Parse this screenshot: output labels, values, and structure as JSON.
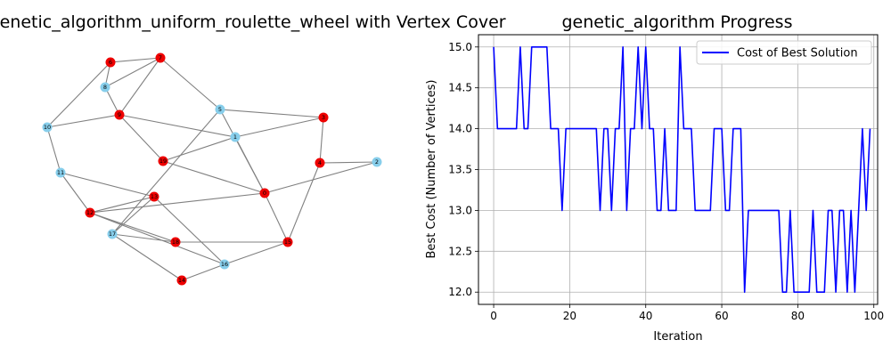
{
  "graph_panel": {
    "title": "graph_genetic_algorithm_uniform_roulette_wheel with Vertex Cover",
    "node_color_selected": "#ee0000",
    "node_color_unselected": "#87ceeb",
    "edge_color": "#808080",
    "nodes": [
      {
        "id": "0",
        "selected": true
      },
      {
        "id": "1",
        "selected": false
      },
      {
        "id": "2",
        "selected": false
      },
      {
        "id": "3",
        "selected": true
      },
      {
        "id": "4",
        "selected": true
      },
      {
        "id": "5",
        "selected": false
      },
      {
        "id": "6",
        "selected": true
      },
      {
        "id": "7",
        "selected": true
      },
      {
        "id": "8",
        "selected": false
      },
      {
        "id": "9",
        "selected": true
      },
      {
        "id": "10",
        "selected": false
      },
      {
        "id": "11",
        "selected": false
      },
      {
        "id": "12",
        "selected": true
      },
      {
        "id": "13",
        "selected": true
      },
      {
        "id": "14",
        "selected": true
      },
      {
        "id": "15",
        "selected": true
      },
      {
        "id": "16",
        "selected": false
      },
      {
        "id": "17",
        "selected": false
      },
      {
        "id": "18",
        "selected": true
      },
      {
        "id": "19",
        "selected": true
      }
    ],
    "edges": [
      [
        "6",
        "7"
      ],
      [
        "6",
        "8"
      ],
      [
        "6",
        "10"
      ],
      [
        "7",
        "8"
      ],
      [
        "7",
        "9"
      ],
      [
        "7",
        "5"
      ],
      [
        "8",
        "9"
      ],
      [
        "9",
        "10"
      ],
      [
        "9",
        "1"
      ],
      [
        "9",
        "19"
      ],
      [
        "5",
        "3"
      ],
      [
        "5",
        "0"
      ],
      [
        "5",
        "17"
      ],
      [
        "3",
        "1"
      ],
      [
        "3",
        "4"
      ],
      [
        "1",
        "19"
      ],
      [
        "1",
        "0"
      ],
      [
        "4",
        "2"
      ],
      [
        "4",
        "15"
      ],
      [
        "2",
        "0"
      ],
      [
        "10",
        "11"
      ],
      [
        "11",
        "13"
      ],
      [
        "11",
        "12"
      ],
      [
        "19",
        "0"
      ],
      [
        "0",
        "12"
      ],
      [
        "0",
        "15"
      ],
      [
        "13",
        "17"
      ],
      [
        "13",
        "16"
      ],
      [
        "13",
        "12"
      ],
      [
        "12",
        "18"
      ],
      [
        "12",
        "16"
      ],
      [
        "17",
        "18"
      ],
      [
        "17",
        "14"
      ],
      [
        "18",
        "15"
      ],
      [
        "15",
        "16"
      ],
      [
        "16",
        "14"
      ]
    ]
  },
  "chart_data": {
    "type": "line",
    "title": "genetic_algorithm Progress",
    "xlabel": "Iteration",
    "ylabel": "Best Cost (Number of Vertices)",
    "xlim": [
      -4,
      101
    ],
    "ylim": [
      11.85,
      15.15
    ],
    "xticks": [
      0,
      20,
      40,
      60,
      80,
      100
    ],
    "yticks": [
      12.0,
      12.5,
      13.0,
      13.5,
      14.0,
      14.5,
      15.0
    ],
    "grid": true,
    "legend_position": "top-right",
    "series": [
      {
        "name": "Cost of Best Solution",
        "color": "#0000ff",
        "x": [
          0,
          1,
          2,
          3,
          4,
          5,
          6,
          7,
          8,
          9,
          10,
          11,
          12,
          13,
          14,
          15,
          16,
          17,
          18,
          19,
          20,
          21,
          22,
          23,
          24,
          25,
          26,
          27,
          28,
          29,
          30,
          31,
          32,
          33,
          34,
          35,
          36,
          37,
          38,
          39,
          40,
          41,
          42,
          43,
          44,
          45,
          46,
          47,
          48,
          49,
          50,
          51,
          52,
          53,
          54,
          55,
          56,
          57,
          58,
          59,
          60,
          61,
          62,
          63,
          64,
          65,
          66,
          67,
          68,
          69,
          70,
          71,
          72,
          73,
          74,
          75,
          76,
          77,
          78,
          79,
          80,
          81,
          82,
          83,
          84,
          85,
          86,
          87,
          88,
          89,
          90,
          91,
          92,
          93,
          94,
          95,
          96,
          97,
          98,
          99
        ],
        "values": [
          15,
          14,
          14,
          14,
          14,
          14,
          14,
          15,
          14,
          14,
          15,
          15,
          15,
          15,
          15,
          14,
          14,
          14,
          13,
          14,
          14,
          14,
          14,
          14,
          14,
          14,
          14,
          14,
          13,
          14,
          14,
          13,
          14,
          14,
          15,
          13,
          14,
          14,
          15,
          14,
          15,
          14,
          14,
          13,
          13,
          14,
          13,
          13,
          13,
          15,
          14,
          14,
          14,
          13,
          13,
          13,
          13,
          13,
          14,
          14,
          14,
          13,
          13,
          14,
          14,
          14,
          12,
          13,
          13,
          13,
          13,
          13,
          13,
          13,
          13,
          13,
          12,
          12,
          13,
          12,
          12,
          12,
          12,
          12,
          13,
          12,
          12,
          12,
          13,
          13,
          12,
          13,
          13,
          12,
          13,
          12,
          13,
          14,
          13,
          14
        ]
      }
    ]
  }
}
